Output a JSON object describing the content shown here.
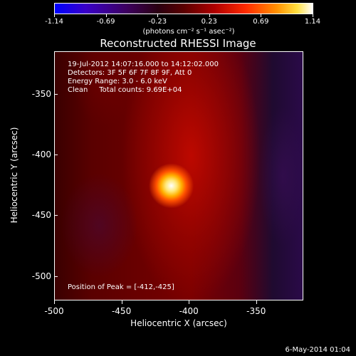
{
  "colorbar": {
    "ticks": [
      "-1.14",
      "-0.69",
      "-0.23",
      "0.23",
      "0.69",
      "1.14"
    ],
    "unit": "(photons cm⁻² s⁻¹ asec⁻²)"
  },
  "image": {
    "title": "Reconstructed RHESSI Image",
    "info": [
      "19-Jul-2012 14:07:16.000 to 14:12:02.000",
      "Detectors: 3F 5F 6F 7F 8F 9F, Att 0",
      "Energy Range: 3.0 - 6.0 keV",
      "Clean     Total counts: 9.69E+04"
    ],
    "peak": "Position of Peak = [-412,-425]"
  },
  "axes": {
    "xlabel": "Heliocentric X (arcsec)",
    "ylabel": "Heliocentric Y (arcsec)",
    "xticks": [
      "-500",
      "-450",
      "-400",
      "-350"
    ],
    "yticks": [
      "-350",
      "-400",
      "-450",
      "-500"
    ]
  },
  "footer": "6-May-2014 01:04"
}
